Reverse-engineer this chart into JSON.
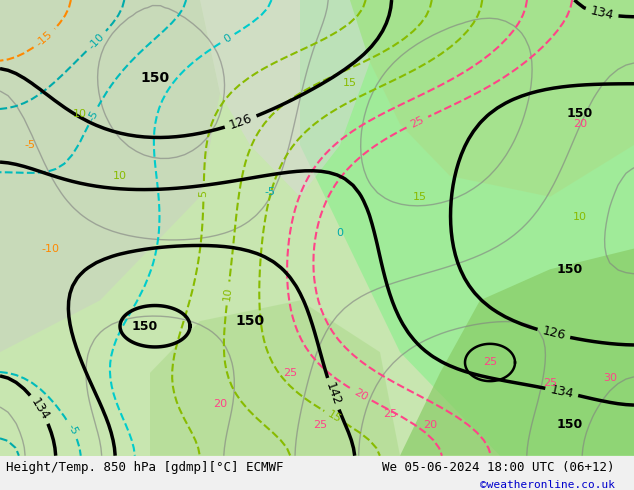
{
  "title_left": "Height/Temp. 850 hPa [gdmp][°C] ECMWF",
  "title_right": "We 05-06-2024 18:00 UTC (06+12)",
  "credit": "©weatheronline.co.uk",
  "bg_color": "#e8f5e0",
  "fig_width": 6.34,
  "fig_height": 4.9,
  "dpi": 100,
  "title_fontsize": 9,
  "credit_fontsize": 8,
  "credit_color": "#0000cc"
}
